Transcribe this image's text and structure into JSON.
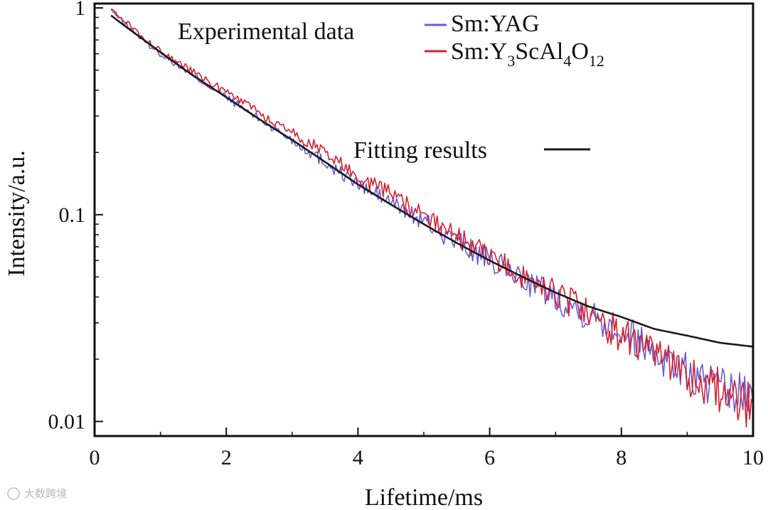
{
  "chart_data": {
    "type": "line",
    "title": "",
    "xlabel": "Lifetime/ms",
    "ylabel": "Intensity/a.u.",
    "xlim": [
      0,
      10
    ],
    "ylim": [
      0.0085,
      1.05
    ],
    "yscale": "log",
    "grid": false,
    "x_ticks": [
      0,
      2,
      4,
      6,
      8,
      10
    ],
    "x_tick_labels": [
      "0",
      "2",
      "4",
      "6",
      "8",
      "10"
    ],
    "y_ticks": [
      1,
      0.1,
      0.01
    ],
    "y_tick_labels": [
      "1",
      "0.1",
      "0.01"
    ],
    "legend": {
      "group_title": "Experimental data",
      "entries": [
        {
          "label": "Sm:YAG",
          "color": "#6b5bd6"
        },
        {
          "label_parts": [
            "Sm:Y",
            "3",
            "ScAl",
            "4",
            "O",
            "12"
          ],
          "color": "#d8202c"
        }
      ],
      "fit_label": "Fitting results",
      "fit_color": "#1a1a1a"
    },
    "series": [
      {
        "name": "Sm:YAG",
        "color": "#6b5bd6",
        "x": [
          0.25,
          0.5,
          0.75,
          1.0,
          1.5,
          2.0,
          2.5,
          3.0,
          3.5,
          4.0,
          4.5,
          5.0,
          5.5,
          6.0,
          6.5,
          7.0,
          7.5,
          8.0,
          8.5,
          9.0,
          9.5,
          10.0
        ],
        "values": [
          0.98,
          0.82,
          0.69,
          0.6,
          0.47,
          0.37,
          0.29,
          0.23,
          0.18,
          0.14,
          0.115,
          0.092,
          0.074,
          0.06,
          0.049,
          0.04,
          0.033,
          0.028,
          0.022,
          0.017,
          0.014,
          0.013
        ]
      },
      {
        "name": "Sm:Y3ScAl4O12",
        "color": "#d8202c",
        "x": [
          0.25,
          0.5,
          0.75,
          1.0,
          1.5,
          2.0,
          2.5,
          3.0,
          3.5,
          4.0,
          4.5,
          5.0,
          5.5,
          6.0,
          6.5,
          7.0,
          7.5,
          8.0,
          8.5,
          9.0,
          9.5,
          10.0
        ],
        "values": [
          0.99,
          0.84,
          0.71,
          0.62,
          0.49,
          0.39,
          0.31,
          0.25,
          0.2,
          0.155,
          0.125,
          0.098,
          0.078,
          0.062,
          0.05,
          0.041,
          0.033,
          0.026,
          0.021,
          0.017,
          0.014,
          0.012
        ]
      },
      {
        "name": "Fitting results",
        "color": "#1a1a1a",
        "x": [
          0.25,
          0.5,
          0.75,
          1.0,
          1.5,
          2.0,
          2.5,
          3.0,
          3.5,
          4.0,
          4.5,
          5.0,
          5.5,
          6.0,
          6.5,
          7.0,
          7.5,
          8.0,
          8.5,
          9.0,
          9.5,
          10.0
        ],
        "values": [
          0.92,
          0.8,
          0.7,
          0.61,
          0.47,
          0.37,
          0.29,
          0.23,
          0.18,
          0.14,
          0.112,
          0.09,
          0.073,
          0.06,
          0.05,
          0.042,
          0.036,
          0.032,
          0.028,
          0.026,
          0.024,
          0.023
        ]
      }
    ]
  },
  "watermark": "大数跨境"
}
